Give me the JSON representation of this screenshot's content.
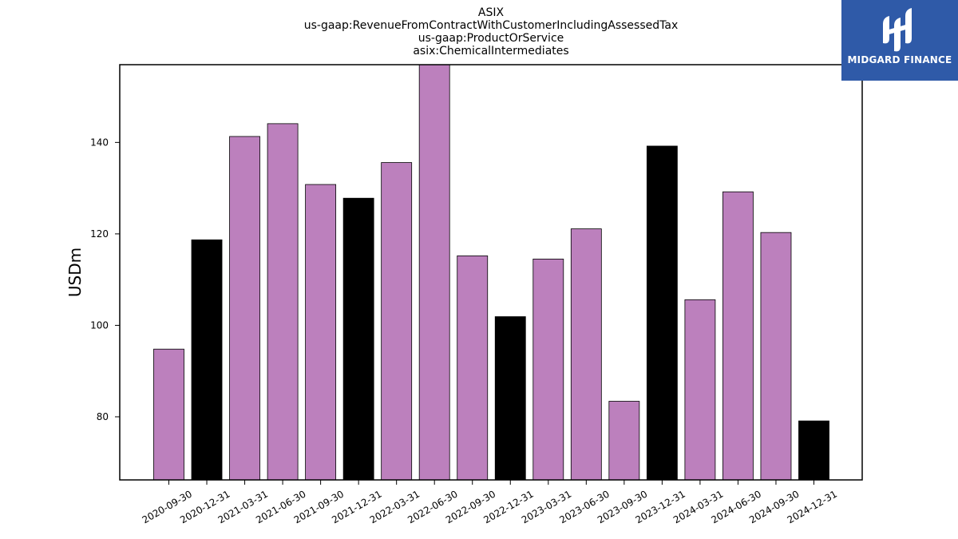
{
  "chart_data": {
    "type": "bar",
    "title_lines": [
      "ASIX",
      "us-gaap:RevenueFromContractWithCustomerIncludingAssessedTax",
      "us-gaap:ProductOrService",
      "asix:ChemicalIntermediates"
    ],
    "xlabel": "",
    "ylabel": "USDm",
    "categories": [
      "2020-09-30",
      "2020-12-31",
      "2021-03-31",
      "2021-06-30",
      "2021-09-30",
      "2021-12-31",
      "2022-03-31",
      "2022-06-30",
      "2022-09-30",
      "2022-12-31",
      "2023-03-31",
      "2023-06-30",
      "2023-09-30",
      "2023-12-31",
      "2024-03-31",
      "2024-06-30",
      "2024-09-30",
      "2024-12-31"
    ],
    "values": [
      94.8,
      118.7,
      141.3,
      144.1,
      130.8,
      127.8,
      135.6,
      157.0,
      115.2,
      101.9,
      114.5,
      121.1,
      83.4,
      139.2,
      105.6,
      129.2,
      120.3,
      79.1
    ],
    "bar_colors": [
      "#bc80bd",
      "#000000",
      "#bc80bd",
      "#bc80bd",
      "#bc80bd",
      "#000000",
      "#bc80bd",
      "#bc80bd",
      "#bc80bd",
      "#000000",
      "#bc80bd",
      "#bc80bd",
      "#bc80bd",
      "#000000",
      "#bc80bd",
      "#bc80bd",
      "#bc80bd",
      "#000000"
    ],
    "ylim": [
      66.2,
      157.0
    ],
    "yticks": [
      80,
      100,
      120,
      140
    ],
    "grid": false
  },
  "logo": {
    "text": "MIDGARD FINANCE",
    "background": "#2f5aa8"
  }
}
